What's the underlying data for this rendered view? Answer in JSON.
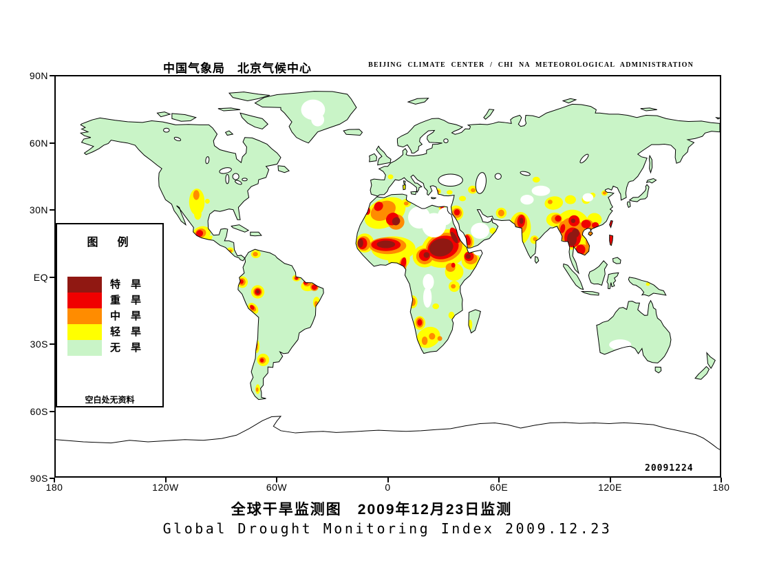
{
  "header": {
    "left": "中国气象局　北京气候中心",
    "right": "BEIJING CLIMATE CENTER / CHI NA METEOROLOGICAL ADMINISTRATION"
  },
  "map": {
    "date_stamp": "20091224",
    "y_axis": [
      "90N",
      "60N",
      "30N",
      "EQ",
      "30S",
      "60S",
      "90S"
    ],
    "x_axis": [
      "180",
      "120W",
      "60W",
      "0",
      "60E",
      "120E",
      "180"
    ]
  },
  "legend": {
    "title": "图　例",
    "items": [
      {
        "label": "特　旱",
        "color": "#901812"
      },
      {
        "label": "重　旱",
        "color": "#f00000"
      },
      {
        "label": "中　旱",
        "color": "#ff8c00"
      },
      {
        "label": "轻　旱",
        "color": "#ffff00"
      },
      {
        "label": "无　旱",
        "color": "#c9f4c7"
      }
    ],
    "note": "空白处无资料"
  },
  "titles": {
    "chinese": "全球干旱监测图　2009年12月23日监测",
    "english": "Global Drought Monitoring Index  2009.12.23"
  },
  "colors": {
    "land": "#c9f4c7",
    "ocean": "#ffffff",
    "yellow": "#ffff00",
    "orange": "#ff8c00",
    "red": "#f00000",
    "darkred": "#901812"
  }
}
